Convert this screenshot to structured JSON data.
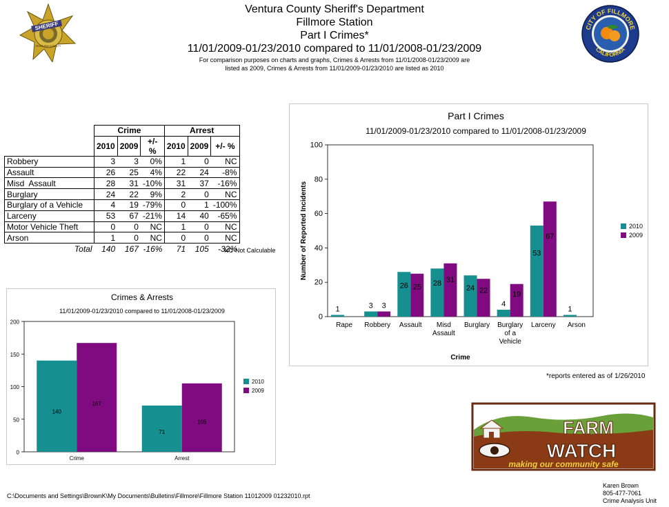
{
  "header": {
    "line1": "Ventura County Sheriff's Department",
    "line2": "Fillmore Station",
    "line3": "Part I Crimes*",
    "line4": "11/01/2009-01/23/2010 compared to 11/01/2008-01/23/2009",
    "note1": "For comparison purposes on charts and graphs, Crimes & Arrests from 11/01/2008-01/23/2009 are",
    "note2": "listed as 2009, Crimes & Arrests from 11/01/2009-01/23/2010 are listed as 2010"
  },
  "logos": {
    "badge_top": "SHERIFF",
    "badge_bottom": "VENTURA COUNTY",
    "seal_top": "CITY OF FILLMORE",
    "seal_bottom": "CALIFORNIA",
    "farm_word1": "FARM",
    "farm_word2": "WATCH",
    "farm_tagline": "making our community safe"
  },
  "table": {
    "group_crime": "Crime",
    "group_arrest": "Arrest",
    "col_2010": "2010",
    "col_2009": "2009",
    "col_pct": "+/- %",
    "rows": [
      {
        "label": "Robbery",
        "c2010": "3",
        "c2009": "3",
        "cpct": "0%",
        "a2010": "1",
        "a2009": "0",
        "apct": "NC"
      },
      {
        "label": "Assault",
        "c2010": "26",
        "c2009": "25",
        "cpct": "4%",
        "a2010": "22",
        "a2009": "24",
        "apct": "-8%"
      },
      {
        "label": "Misd  Assault",
        "c2010": "28",
        "c2009": "31",
        "cpct": "-10%",
        "a2010": "31",
        "a2009": "37",
        "apct": "-16%"
      },
      {
        "label": "Burglary",
        "c2010": "24",
        "c2009": "22",
        "cpct": "9%",
        "a2010": "2",
        "a2009": "0",
        "apct": "NC"
      },
      {
        "label": "Burglary of a Vehicle",
        "c2010": "4",
        "c2009": "19",
        "cpct": "-79%",
        "a2010": "0",
        "a2009": "1",
        "apct": "-100%"
      },
      {
        "label": "Larceny",
        "c2010": "53",
        "c2009": "67",
        "cpct": "-21%",
        "a2010": "14",
        "a2009": "40",
        "apct": "-65%"
      },
      {
        "label": "Motor Vehicle Theft",
        "c2010": "0",
        "c2009": "0",
        "cpct": "NC",
        "a2010": "1",
        "a2009": "0",
        "apct": "NC"
      },
      {
        "label": "Arson",
        "c2010": "1",
        "c2009": "0",
        "cpct": "NC",
        "a2010": "0",
        "a2009": "0",
        "apct": "NC"
      }
    ],
    "total": {
      "label": "Total",
      "c2010": "140",
      "c2009": "167",
      "cpct": "-16%",
      "a2010": "71",
      "a2009": "105",
      "apct": "-32%"
    },
    "nc_note": "NC-Not Calculable"
  },
  "colors": {
    "teal": "#158f8f",
    "purple": "#800a80"
  },
  "chart_data": [
    {
      "type": "bar",
      "title": "Part I Crimes",
      "subtitle": "11/01/2009-01/23/2010 compared to 11/01/2008-01/23/2009",
      "xlabel": "Crime",
      "ylabel": "Number of Reported Incidents",
      "ylim": [
        0,
        100
      ],
      "yticks": [
        "0",
        "20",
        "40",
        "60",
        "80",
        "100"
      ],
      "categories": [
        [
          "Rape"
        ],
        [
          "Robbery"
        ],
        [
          "Assault"
        ],
        [
          "Misd",
          "Assault"
        ],
        [
          "Burglary"
        ],
        [
          "Burglary",
          "of a",
          "Vehicle"
        ],
        [
          "Larceny"
        ],
        [
          "Arson"
        ]
      ],
      "series": [
        {
          "name": "2010",
          "values": [
            1,
            3,
            26,
            28,
            24,
            4,
            53,
            1
          ],
          "labels": [
            "1",
            "3",
            "26",
            "28",
            "24",
            "4",
            "53",
            "1"
          ]
        },
        {
          "name": "2009",
          "values": [
            0,
            3,
            25,
            31,
            22,
            19,
            67,
            0
          ],
          "labels": [
            "",
            "3",
            "25",
            "31",
            "22",
            "19",
            "67",
            ""
          ]
        }
      ],
      "legend": "right"
    },
    {
      "type": "bar",
      "title": "Crimes & Arrests",
      "subtitle": "11/01/2009-01/23/2010 compared to 11/01/2008-01/23/2009",
      "xlabel": "",
      "ylabel": "",
      "ylim": [
        0,
        200
      ],
      "yticks": [
        "0",
        "50",
        "100",
        "150",
        "200"
      ],
      "categories": [
        [
          "Crime"
        ],
        [
          "Arrest"
        ]
      ],
      "series": [
        {
          "name": "2010",
          "values": [
            140,
            71
          ],
          "labels": [
            "140",
            "71"
          ]
        },
        {
          "name": "2009",
          "values": [
            167,
            105
          ],
          "labels": [
            "167",
            "105"
          ]
        }
      ],
      "legend": "right"
    }
  ],
  "footer": {
    "reports_note": "*reports entered as of 1/26/2010",
    "path": "C:\\Documents and Settings\\BrownK\\My Documents\\Bulletins\\Fillmore\\Fillmore Station 11012009 01232010.rpt",
    "contact_name": "Karen Brown",
    "contact_phone": "805-477-7061",
    "contact_unit": "Crime Analysis Unit"
  }
}
